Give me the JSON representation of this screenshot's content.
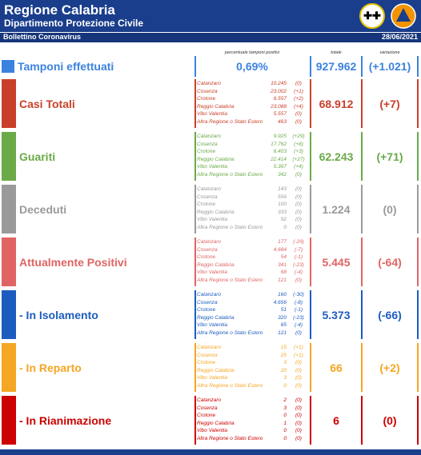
{
  "header": {
    "title": "Regione Calabria",
    "subtitle": "Dipartimento Protezione Civile",
    "bulletin": "Bollettino Coronavirus",
    "date": "28/06/2021"
  },
  "columns": {
    "pct": "percentuale tamponi positivi",
    "total": "totale",
    "variation": "variazione"
  },
  "tamponi": {
    "title": "Tamponi effettuati",
    "pct": "0,69%",
    "total": "927.962",
    "variation": "(+1.021)"
  },
  "sections": [
    {
      "title": "Casi Totali",
      "color": "#c9402a",
      "rows": [
        [
          "Catanzaro",
          "10.245",
          "(0)"
        ],
        [
          "Cosenza",
          "23.002",
          "(+1)"
        ],
        [
          "Crotone",
          "6.557",
          "(+2)"
        ],
        [
          "Reggio Calabria",
          "23.088",
          "(+4)"
        ],
        [
          "Vibo Valentia",
          "5.557",
          "(0)"
        ],
        [
          "Altra Regione o Stato Estero",
          "463",
          "(0)"
        ]
      ],
      "total": "68.912",
      "variation": "(+7)"
    },
    {
      "title": "Guariti",
      "color": "#6aaa48",
      "rows": [
        [
          "Catanzaro",
          "9.925",
          "(+29)"
        ],
        [
          "Cosenza",
          "17.762",
          "(+8)"
        ],
        [
          "Crotone",
          "6.403",
          "(+3)"
        ],
        [
          "Reggio Calabria",
          "22.414",
          "(+27)"
        ],
        [
          "Vibo Valentia",
          "5.397",
          "(+4)"
        ],
        [
          "Altra Regione o Stato Estero",
          "342",
          "(0)"
        ]
      ],
      "total": "62.243",
      "variation": "(+71)"
    },
    {
      "title": "Deceduti",
      "color": "#9a9a9a",
      "rows": [
        [
          "Catanzaro",
          "143",
          "(0)"
        ],
        [
          "Cosenza",
          "556",
          "(0)"
        ],
        [
          "Crotone",
          "100",
          "(0)"
        ],
        [
          "Reggio Calabria",
          "333",
          "(0)"
        ],
        [
          "Vibo Valentia",
          "92",
          "(0)"
        ],
        [
          "Altra Regione o Stato Estero",
          "0",
          "(0)"
        ]
      ],
      "total": "1.224",
      "variation": "(0)"
    },
    {
      "title": "Attualmente Positivi",
      "color": "#e06464",
      "rows": [
        [
          "Catanzaro",
          "177",
          "(-29)"
        ],
        [
          "Cosenza",
          "4.684",
          "(-7)"
        ],
        [
          "Crotone",
          "54",
          "(-1)"
        ],
        [
          "Reggio Calabria",
          "341",
          "(-23)"
        ],
        [
          "Vibo Valentia",
          "68",
          "(-4)"
        ],
        [
          "Altra Regione o Stato Estero",
          "121",
          "(0)"
        ]
      ],
      "total": "5.445",
      "variation": "(-64)"
    },
    {
      "title": "- In Isolamento",
      "color": "#1d5cbf",
      "rows": [
        [
          "Catanzaro",
          "160",
          "(-30)"
        ],
        [
          "Cosenza",
          "4.656",
          "(-8)"
        ],
        [
          "Crotone",
          "51",
          "(-1)"
        ],
        [
          "Reggio Calabria",
          "320",
          "(-23)"
        ],
        [
          "Vibo Valentia",
          "65",
          "(-4)"
        ],
        [
          "Altra Regione o Stato Estero",
          "121",
          "(0)"
        ]
      ],
      "total": "5.373",
      "variation": "(-66)"
    },
    {
      "title": "- In Reparto",
      "color": "#f5a623",
      "rows": [
        [
          "Catanzaro",
          "15",
          "(+1)"
        ],
        [
          "Cosenza",
          "25",
          "(+1)"
        ],
        [
          "Crotone",
          "3",
          "(0)"
        ],
        [
          "Reggio Calabria",
          "20",
          "(0)"
        ],
        [
          "Vibo Valentia",
          "3",
          "(0)"
        ],
        [
          "Altra Regione o Stato Estero",
          "0",
          "(0)"
        ]
      ],
      "total": "66",
      "variation": "(+2)"
    },
    {
      "title": "- In Rianimazione",
      "color": "#cc0000",
      "rows": [
        [
          "Catanzaro",
          "2",
          "(0)"
        ],
        [
          "Cosenza",
          "3",
          "(0)"
        ],
        [
          "Crotone",
          "0",
          "(0)"
        ],
        [
          "Reggio Calabria",
          "1",
          "(0)"
        ],
        [
          "Vibo Valentia",
          "0",
          "(0)"
        ],
        [
          "Altra Regione o Stato Estero",
          "0",
          "(0)"
        ]
      ],
      "total": "6",
      "variation": "(0)"
    }
  ]
}
